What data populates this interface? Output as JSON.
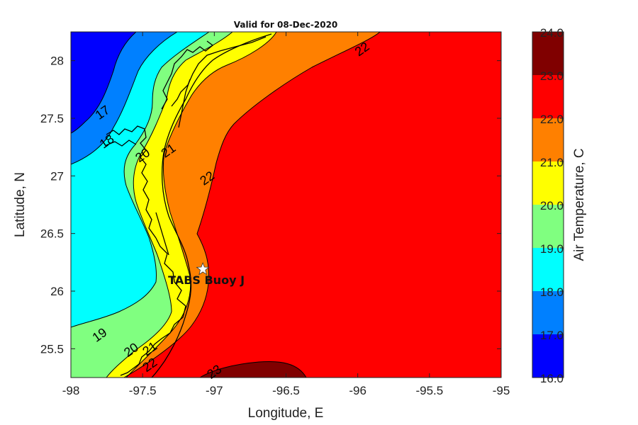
{
  "chart_data": {
    "type": "contour_map",
    "title": "Valid for 08-Dec-2020",
    "xlabel": "Longitude, E",
    "ylabel": "Latitude, N",
    "xlim": [
      -98,
      -95
    ],
    "ylim": [
      25.25,
      28.25
    ],
    "xticks": [
      -98,
      -97.5,
      -97,
      -96.5,
      -96,
      -95.5,
      -95
    ],
    "yticks": [
      25.5,
      26,
      26.5,
      27,
      27.5,
      28
    ],
    "colorbar": {
      "label": "Air Temperature, C",
      "levels": [
        16.0,
        17.0,
        18.0,
        19.0,
        20.0,
        21.0,
        22.0,
        23.0,
        24.0
      ],
      "tick_labels": [
        "16.0",
        "17.0",
        "18.0",
        "19.0",
        "20.0",
        "21.0",
        "22.0",
        "23.0",
        "24.0"
      ],
      "colors": [
        "#0000ff",
        "#0080ff",
        "#00ffff",
        "#80ff80",
        "#ffff00",
        "#ff8000",
        "#ff0000",
        "#800000"
      ]
    },
    "contour_labels": [
      {
        "text": "17",
        "lon": -97.78,
        "lat": 27.55
      },
      {
        "text": "18",
        "lon": -97.75,
        "lat": 27.3
      },
      {
        "text": "20",
        "lon": -97.5,
        "lat": 27.18
      },
      {
        "text": "21",
        "lon": -97.32,
        "lat": 27.22
      },
      {
        "text": "22",
        "lon": -97.05,
        "lat": 26.98
      },
      {
        "text": "22",
        "lon": -95.97,
        "lat": 28.1
      },
      {
        "text": "19",
        "lon": -97.8,
        "lat": 25.62
      },
      {
        "text": "20",
        "lon": -97.58,
        "lat": 25.49
      },
      {
        "text": "21",
        "lon": -97.45,
        "lat": 25.5
      },
      {
        "text": "22",
        "lon": -97.45,
        "lat": 25.36
      },
      {
        "text": "23",
        "lon": -97.0,
        "lat": 25.3
      }
    ],
    "annotations": [
      {
        "text": "TABS Buoy J",
        "lon": -97.08,
        "lat": 26.19,
        "marker": "star"
      }
    ]
  }
}
